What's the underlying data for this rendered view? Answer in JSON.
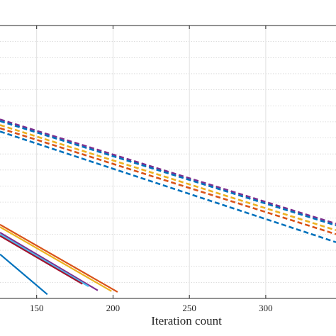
{
  "chart_data": {
    "type": "line",
    "title": "",
    "xlabel": "Iteration count",
    "ylabel": "",
    "xlim": [
      126,
      346
    ],
    "ylim": [
      0,
      34
    ],
    "x_ticks": [
      150,
      200,
      250,
      300
    ],
    "x_tick_labels": [
      "150",
      "200",
      "250",
      "300"
    ],
    "grid": true,
    "y_grid_minor": true,
    "colors": {
      "blue": "#0072BD",
      "orange": "#D95319",
      "yellow": "#EDB120",
      "purple": "#7E2F8E",
      "green": "#77AC30",
      "lightblue": "#4DBEEE",
      "red": "#A2142F"
    },
    "series": [
      {
        "style": "dashed",
        "color": "purple",
        "x": [
          126,
          346
        ],
        "y": [
          22.3,
          9.3
        ]
      },
      {
        "style": "dashed",
        "color": "blue",
        "x": [
          126,
          346
        ],
        "y": [
          22.1,
          9.1
        ]
      },
      {
        "style": "dashed",
        "color": "yellow",
        "x": [
          126,
          346
        ],
        "y": [
          21.6,
          8.5
        ]
      },
      {
        "style": "dashed",
        "color": "orange",
        "x": [
          126,
          346
        ],
        "y": [
          21.2,
          8.0
        ]
      },
      {
        "style": "dashed",
        "color": "blue",
        "x": [
          126,
          346
        ],
        "y": [
          20.8,
          7.0
        ]
      },
      {
        "style": "solid",
        "color": "orange",
        "x": [
          126,
          203
        ],
        "y": [
          9.2,
          0.8
        ]
      },
      {
        "style": "solid",
        "color": "yellow",
        "x": [
          126,
          199
        ],
        "y": [
          8.9,
          0.9
        ]
      },
      {
        "style": "solid",
        "color": "purple",
        "x": [
          126,
          190
        ],
        "y": [
          8.2,
          1.0
        ]
      },
      {
        "style": "solid",
        "color": "lightblue",
        "x": [
          126,
          184
        ],
        "y": [
          8.0,
          1.5
        ]
      },
      {
        "style": "solid",
        "color": "red",
        "x": [
          126,
          180
        ],
        "y": [
          7.8,
          1.8
        ]
      },
      {
        "style": "solid",
        "color": "blue",
        "x": [
          126,
          157
        ],
        "y": [
          5.5,
          0.5
        ]
      }
    ]
  }
}
